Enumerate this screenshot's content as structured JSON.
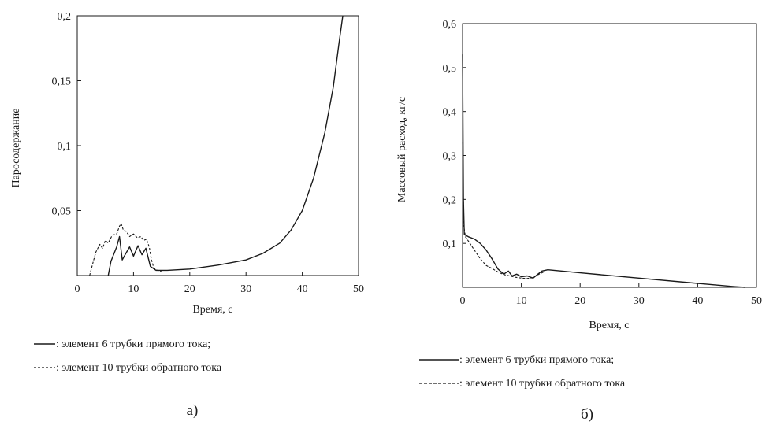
{
  "chart_data": [
    {
      "type": "line",
      "caption": "а)",
      "xlabel": "Время, с",
      "ylabel": "Паросодержание",
      "xlim": [
        0,
        50
      ],
      "ylim": [
        0,
        0.2
      ],
      "x_ticks": [
        "0",
        "10",
        "20",
        "30",
        "40",
        "50"
      ],
      "y_ticks": [
        "0,05",
        "0,1",
        "0,15",
        "0,2"
      ],
      "grid": false,
      "legend_position": "below",
      "series": [
        {
          "name": ": элемент 6 трубки прямого тока;",
          "style": "solid",
          "points": [
            [
              5.5,
              0
            ],
            [
              6,
              0.011
            ],
            [
              7,
              0.022
            ],
            [
              7.5,
              0.03
            ],
            [
              8,
              0.012
            ],
            [
              8.5,
              0.016
            ],
            [
              9.3,
              0.022
            ],
            [
              10,
              0.015
            ],
            [
              10.8,
              0.023
            ],
            [
              11.5,
              0.016
            ],
            [
              12.2,
              0.021
            ],
            [
              13,
              0.007
            ],
            [
              14,
              0.004
            ],
            [
              16,
              0.004
            ],
            [
              20,
              0.005
            ],
            [
              25,
              0.008
            ],
            [
              30,
              0.012
            ],
            [
              33,
              0.017
            ],
            [
              36,
              0.025
            ],
            [
              38,
              0.035
            ],
            [
              40,
              0.05
            ],
            [
              42,
              0.075
            ],
            [
              44,
              0.11
            ],
            [
              45.5,
              0.145
            ],
            [
              46.5,
              0.178
            ],
            [
              47.2,
              0.2
            ]
          ]
        },
        {
          "name": ": элемент 10 трубки обратного тока",
          "style": "dashed",
          "points": [
            [
              2.2,
              0
            ],
            [
              2.8,
              0.01
            ],
            [
              3.3,
              0.018
            ],
            [
              4,
              0.024
            ],
            [
              4.5,
              0.021
            ],
            [
              5,
              0.027
            ],
            [
              5.5,
              0.025
            ],
            [
              6.2,
              0.031
            ],
            [
              7,
              0.032
            ],
            [
              7.5,
              0.038
            ],
            [
              7.8,
              0.04
            ],
            [
              8.2,
              0.035
            ],
            [
              8.7,
              0.034
            ],
            [
              9.3,
              0.03
            ],
            [
              10,
              0.032
            ],
            [
              10.7,
              0.029
            ],
            [
              11.3,
              0.03
            ],
            [
              11.8,
              0.027
            ],
            [
              12.3,
              0.028
            ],
            [
              12.8,
              0.022
            ],
            [
              13.2,
              0.012
            ],
            [
              13.6,
              0.006
            ],
            [
              14.2,
              0.004
            ],
            [
              15,
              0.003
            ]
          ]
        }
      ]
    },
    {
      "type": "line",
      "caption": "б)",
      "xlabel": "Время, с",
      "ylabel": "Массовый расход, кг/с",
      "xlim": [
        0,
        50
      ],
      "ylim": [
        0,
        0.6
      ],
      "x_ticks": [
        "0",
        "10",
        "20",
        "30",
        "40",
        "50"
      ],
      "y_ticks": [
        "0,1",
        "0,2",
        "0,3",
        "0,4",
        "0,5",
        "0,6"
      ],
      "grid": false,
      "legend_position": "below",
      "series": [
        {
          "name": ": элемент 6 трубки прямого тока;",
          "style": "solid",
          "points": [
            [
              0,
              0.53
            ],
            [
              0.15,
              0.2
            ],
            [
              0.3,
              0.12
            ],
            [
              1,
              0.115
            ],
            [
              2,
              0.11
            ],
            [
              3,
              0.1
            ],
            [
              4,
              0.085
            ],
            [
              5,
              0.065
            ],
            [
              6,
              0.042
            ],
            [
              7,
              0.03
            ],
            [
              7.8,
              0.037
            ],
            [
              8.4,
              0.026
            ],
            [
              9.2,
              0.03
            ],
            [
              10,
              0.024
            ],
            [
              11,
              0.026
            ],
            [
              12,
              0.021
            ],
            [
              12.8,
              0.03
            ],
            [
              13.5,
              0.037
            ],
            [
              14.5,
              0.04
            ],
            [
              20,
              0.033
            ],
            [
              30,
              0.021
            ],
            [
              40,
              0.009
            ],
            [
              46,
              0.002
            ],
            [
              48,
              0
            ]
          ]
        },
        {
          "name": ": элемент 10 трубки обратного тока",
          "style": "dashed",
          "points": [
            [
              0,
              0.33
            ],
            [
              0.2,
              0.14
            ],
            [
              0.5,
              0.115
            ],
            [
              1,
              0.105
            ],
            [
              2,
              0.085
            ],
            [
              3,
              0.065
            ],
            [
              4,
              0.05
            ],
            [
              5,
              0.043
            ],
            [
              6,
              0.035
            ],
            [
              7,
              0.029
            ],
            [
              8,
              0.026
            ],
            [
              9,
              0.023
            ],
            [
              10,
              0.021
            ],
            [
              11,
              0.02
            ],
            [
              12,
              0.022
            ],
            [
              13,
              0.03
            ],
            [
              14,
              0.036
            ]
          ]
        }
      ]
    }
  ]
}
